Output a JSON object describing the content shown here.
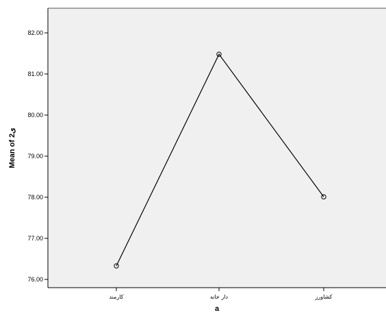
{
  "chart_data": {
    "type": "line",
    "categories": [
      "کارمند",
      "دار خانه",
      "کشاورز"
    ],
    "values": [
      76.33,
      81.48,
      78.01
    ],
    "ylabel": "Mean of 2ی",
    "xlabel": "a",
    "ylim": [
      75.8,
      82.6
    ],
    "yticks": [
      "76.00",
      "77.00",
      "78.00",
      "79.00",
      "80.00",
      "81.00",
      "82.00"
    ],
    "ytick_values": [
      76,
      77,
      78,
      79,
      80,
      81,
      82
    ],
    "grid": false,
    "colors": {
      "plot_background": "#f0f0f0",
      "line": "#000000",
      "marker": "#000000"
    }
  }
}
